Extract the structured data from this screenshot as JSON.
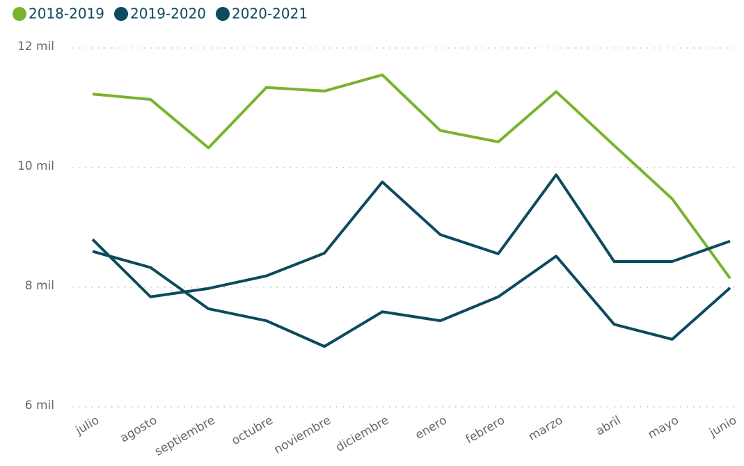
{
  "chart_data": {
    "type": "line",
    "categories": [
      "julio",
      "agosto",
      "septiembre",
      "octubre",
      "noviembre",
      "diciembre",
      "enero",
      "febrero",
      "marzo",
      "abril",
      "mayo",
      "junio"
    ],
    "series": [
      {
        "name": "2018-2019",
        "color": "#7ab32e",
        "values": [
          11230,
          11140,
          10330,
          11340,
          11280,
          11550,
          10620,
          10430,
          11270,
          10370,
          9480,
          8150
        ]
      },
      {
        "name": "2019-2020",
        "color": "#0d4a5c",
        "values": [
          8800,
          7840,
          7980,
          8190,
          8570,
          9760,
          8880,
          8560,
          9880,
          8430,
          8430,
          8770
        ]
      },
      {
        "name": "2020-2021",
        "color": "#0d4a5c",
        "values": [
          8600,
          8330,
          7640,
          7440,
          7010,
          7590,
          7440,
          7840,
          8520,
          7380,
          7130,
          7990
        ]
      }
    ],
    "ylim": [
      6000,
      12000
    ],
    "yticks": [
      {
        "value": 6000,
        "label": "6 mil"
      },
      {
        "value": 8000,
        "label": "8 mil"
      },
      {
        "value": 10000,
        "label": "10 mil"
      },
      {
        "value": 12000,
        "label": "12 mil"
      }
    ],
    "grid": true,
    "legend": "top-left"
  }
}
